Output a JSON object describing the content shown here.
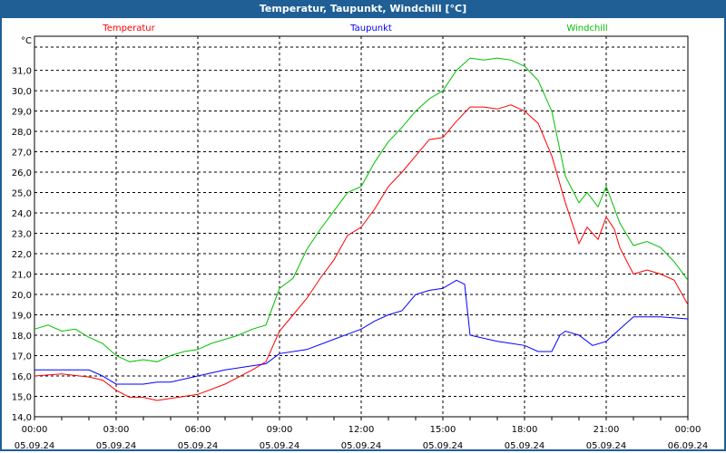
{
  "window": {
    "title": "Temperatur, Taupunkt, Windchill [°C]"
  },
  "chart_data": {
    "type": "line",
    "title": "Temperatur, Taupunkt, Windchill [°C]",
    "ylabel": "°C",
    "xlabel": "",
    "xlim": [
      0,
      24
    ],
    "ylim": [
      14.0,
      32.67
    ],
    "grid": true,
    "legend_placement": "top",
    "yticks": [
      "14,0",
      "15,0",
      "16,0",
      "17,0",
      "18,0",
      "19,0",
      "20,0",
      "21,0",
      "22,0",
      "23,0",
      "24,0",
      "25,0",
      "26,0",
      "27,0",
      "28,0",
      "29,0",
      "30,0",
      "31,0"
    ],
    "xticks": [
      {
        "time": "00:00",
        "date": "05.09.24"
      },
      {
        "time": "03:00",
        "date": "05.09.24"
      },
      {
        "time": "06:00",
        "date": "05.09.24"
      },
      {
        "time": "09:00",
        "date": "05.09.24"
      },
      {
        "time": "12:00",
        "date": "05.09.24"
      },
      {
        "time": "15:00",
        "date": "05.09.24"
      },
      {
        "time": "18:00",
        "date": "05.09.24"
      },
      {
        "time": "21:00",
        "date": "05.09.24"
      },
      {
        "time": "00:00",
        "date": "06.09.24"
      }
    ],
    "series": [
      {
        "name": "Temperatur",
        "color": "#ff0000",
        "x": [
          0,
          1,
          2,
          2.5,
          3,
          3.5,
          4,
          4.5,
          5,
          6,
          7,
          8,
          8.5,
          9,
          9.5,
          10,
          10.5,
          11,
          11.5,
          12,
          12.5,
          13,
          13.5,
          14,
          14.5,
          15,
          15.5,
          16,
          16.5,
          17,
          17.5,
          18,
          18.5,
          19,
          19.5,
          20,
          20.3,
          20.7,
          21,
          21.3,
          21.5,
          22,
          22.5,
          23,
          23.5,
          24
        ],
        "y": [
          16.0,
          16.1,
          15.95,
          15.8,
          15.3,
          14.95,
          14.95,
          14.8,
          14.9,
          15.1,
          15.6,
          16.3,
          16.7,
          18.2,
          19.0,
          19.8,
          20.8,
          21.7,
          22.9,
          23.3,
          24.2,
          25.3,
          26.0,
          26.8,
          27.6,
          27.7,
          28.5,
          29.2,
          29.2,
          29.1,
          29.3,
          29.0,
          28.4,
          26.8,
          24.5,
          22.5,
          23.3,
          22.7,
          23.8,
          23.2,
          22.3,
          21.0,
          21.2,
          21.0,
          20.7,
          19.5
        ]
      },
      {
        "name": "Taupunkt",
        "color": "#0000ff",
        "x": [
          0,
          1,
          2,
          2.5,
          3,
          4,
          4.5,
          5,
          6,
          7,
          8,
          8.5,
          9,
          10,
          11,
          12,
          12.5,
          13,
          13.5,
          14,
          14.5,
          15,
          15.5,
          15.8,
          16,
          17,
          17.5,
          18,
          18.5,
          19,
          19.3,
          19.5,
          20,
          20.5,
          21,
          21.5,
          22,
          23,
          24
        ],
        "y": [
          16.3,
          16.3,
          16.3,
          16.0,
          15.6,
          15.6,
          15.7,
          15.7,
          16.0,
          16.3,
          16.5,
          16.6,
          17.1,
          17.3,
          17.8,
          18.3,
          18.7,
          19.0,
          19.2,
          20.0,
          20.2,
          20.3,
          20.7,
          20.5,
          18.0,
          17.7,
          17.6,
          17.5,
          17.2,
          17.2,
          18.0,
          18.2,
          18.0,
          17.5,
          17.7,
          18.3,
          18.9,
          18.9,
          18.8
        ]
      },
      {
        "name": "Windchill",
        "color": "#00c000",
        "x": [
          0,
          0.5,
          1,
          1.5,
          2,
          2.5,
          3,
          3.5,
          4,
          4.5,
          5,
          5.5,
          6,
          6.5,
          7,
          7.5,
          8,
          8.5,
          9,
          9.5,
          10,
          10.5,
          11,
          11.5,
          12,
          12.5,
          13,
          13.5,
          14,
          14.5,
          15,
          15.5,
          16,
          16.5,
          17,
          17.5,
          18,
          18.5,
          19,
          19.5,
          20,
          20.3,
          20.7,
          21,
          21.5,
          22,
          22.5,
          23,
          23.5,
          24
        ],
        "y": [
          18.3,
          18.5,
          18.2,
          18.3,
          17.9,
          17.6,
          17.0,
          16.7,
          16.8,
          16.7,
          17.0,
          17.2,
          17.3,
          17.6,
          17.8,
          18.0,
          18.3,
          18.5,
          20.3,
          20.8,
          22.2,
          23.2,
          24.1,
          25.0,
          25.3,
          26.5,
          27.5,
          28.2,
          29.0,
          29.6,
          30.0,
          31.0,
          31.6,
          31.5,
          31.6,
          31.5,
          31.2,
          30.5,
          29.0,
          25.8,
          24.5,
          25.0,
          24.3,
          25.3,
          23.5,
          22.4,
          22.6,
          22.3,
          21.6,
          20.7
        ]
      }
    ]
  }
}
